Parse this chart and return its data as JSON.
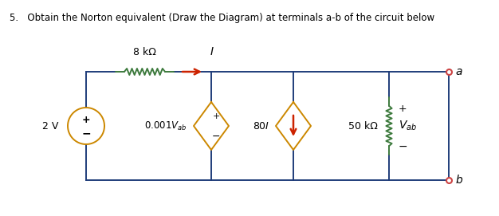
{
  "title": "5.   Obtain the Norton equivalent (Draw the Diagram) at terminals a-b of the circuit below",
  "background": "#ffffff",
  "wire_color": "#1f3d7a",
  "res_color": "#3d7a3d",
  "source_color": "#cc8800",
  "arrow_color": "#cc2200",
  "terminal_color": "#cc4444",
  "label_2V": "2 V",
  "label_8k": "8 kΩ",
  "label_I": "I",
  "label_50k": "50 kΩ",
  "label_a": "a",
  "label_b": "b"
}
